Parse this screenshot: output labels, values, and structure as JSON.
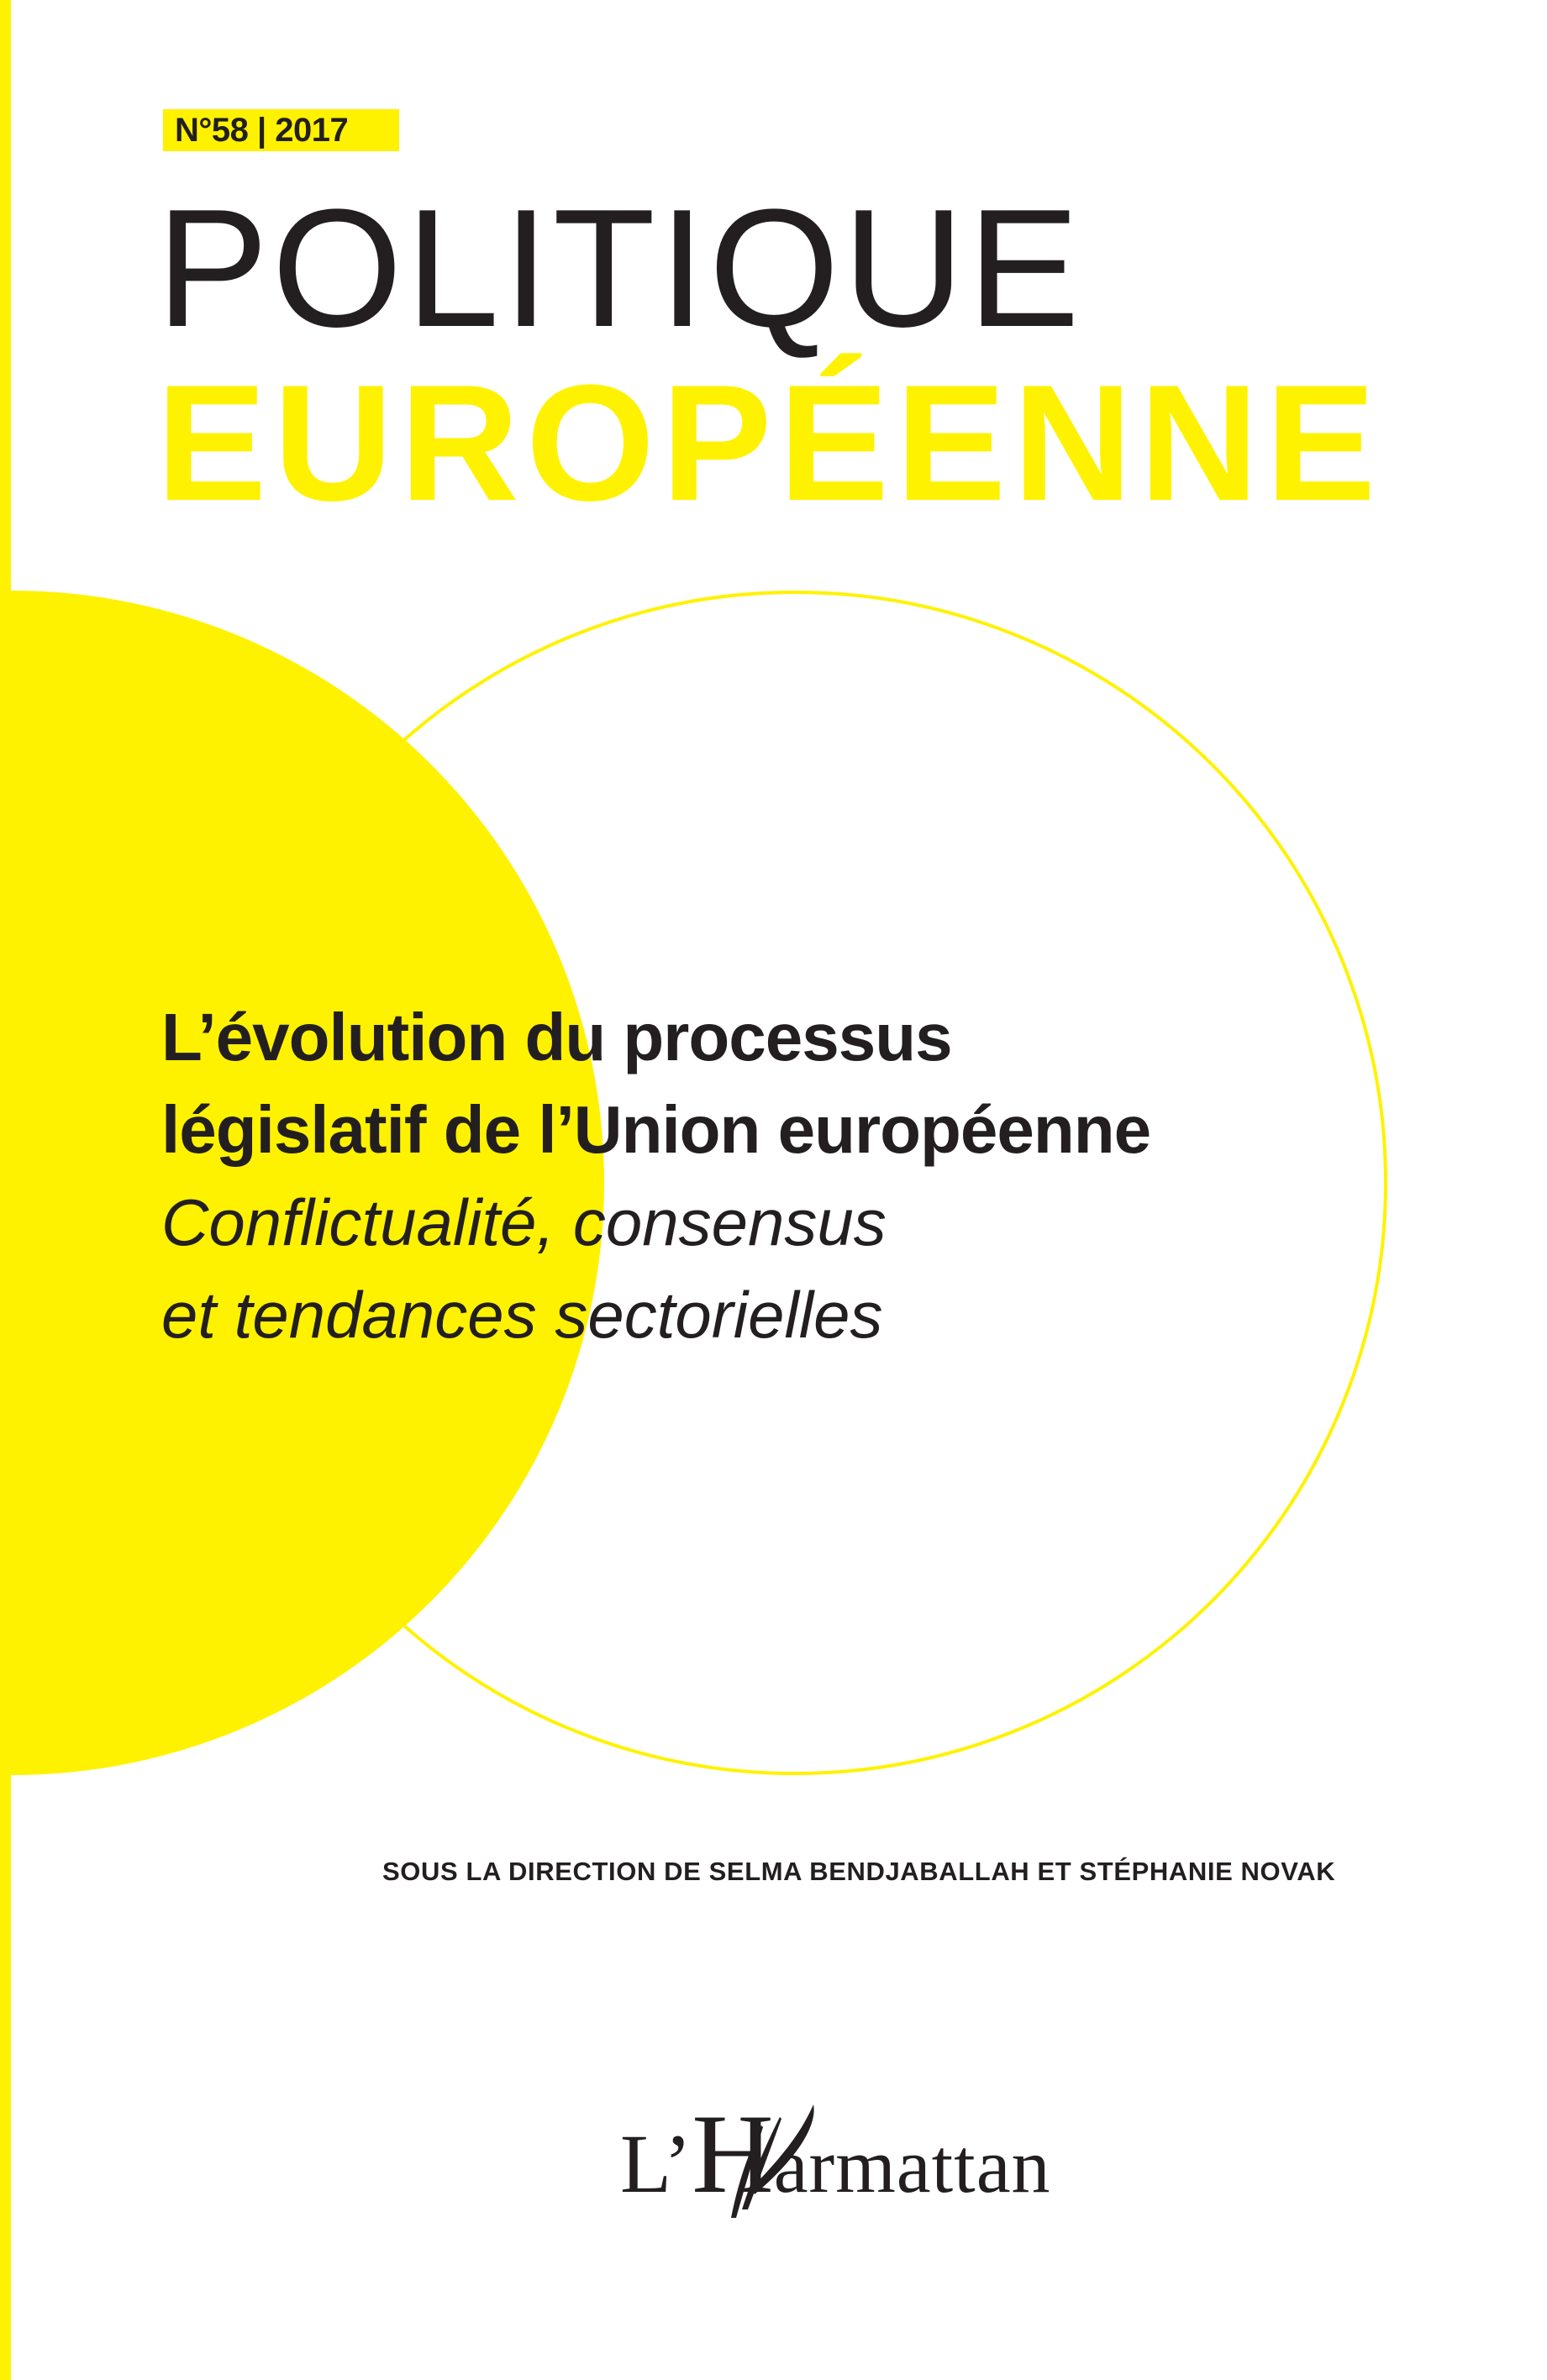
{
  "colors": {
    "accent_yellow": "#fff200",
    "text": "#231f20"
  },
  "issue_badge": "N°58 | 2017",
  "series": {
    "line1": "POLITIQUE",
    "line2": "EUROPÉENNE"
  },
  "title": {
    "lines": [
      "L’évolution du processus",
      "législatif de l’Union européenne"
    ],
    "subtitle_lines": [
      "Conflictualité, consensus",
      "et tendances sectorielles"
    ]
  },
  "credits": "SOUS LA DIRECTION DE SELMA BENDJABALLAH ET STÉPHANIE NOVAK",
  "publisher": {
    "logo_text": "L’Harmattan",
    "logo_L": "L’",
    "logo_H": "H",
    "logo_rest": "armattan",
    "icon": "feather-quill-icon"
  }
}
